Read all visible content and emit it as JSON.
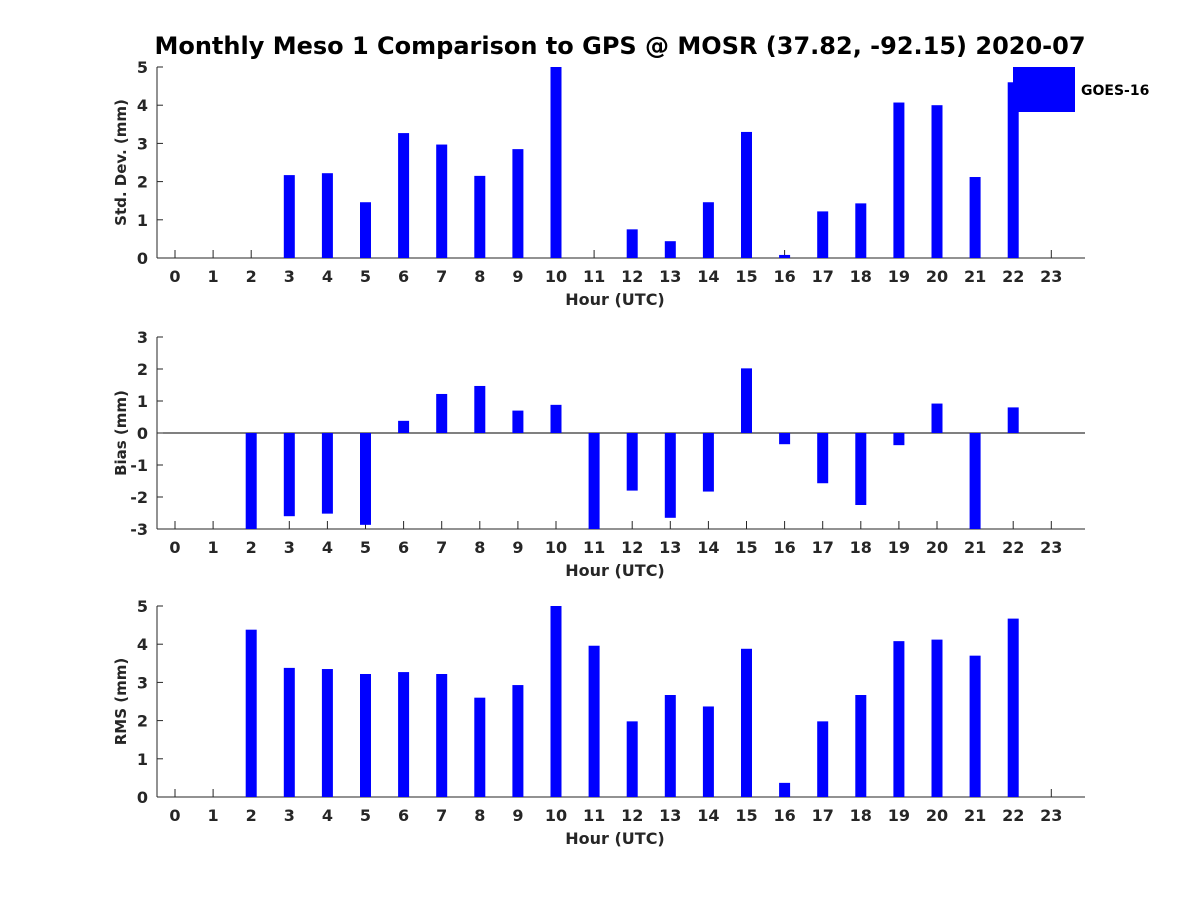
{
  "colors": {
    "bar": "#0000ff",
    "axis": "#262626",
    "background": "#ffffff"
  },
  "chart_data": {
    "title": "Monthly Meso 1 Comparison to GPS @ MOSR (37.82, -92.15) 2020-07",
    "legend": {
      "label": "GOES-16",
      "placement": "top-right"
    },
    "hours": [
      "0",
      "1",
      "2",
      "3",
      "4",
      "5",
      "6",
      "7",
      "8",
      "9",
      "10",
      "11",
      "12",
      "13",
      "14",
      "15",
      "16",
      "17",
      "18",
      "19",
      "20",
      "21",
      "22",
      "23"
    ],
    "panels": [
      {
        "type": "bar",
        "name": "std-dev",
        "ylabel": "Std. Dev. (mm)",
        "xlabel": "Hour (UTC)",
        "ylim": [
          0,
          5
        ],
        "yticks": [
          "0",
          "1",
          "2",
          "3",
          "4",
          "5"
        ],
        "values": [
          null,
          null,
          null,
          2.17,
          2.22,
          1.46,
          3.27,
          2.97,
          2.15,
          2.85,
          5.0,
          null,
          0.75,
          0.44,
          1.46,
          3.3,
          0.08,
          1.22,
          1.43,
          4.07,
          4.0,
          2.12,
          4.6,
          null
        ]
      },
      {
        "type": "bar",
        "name": "bias",
        "ylabel": "Bias (mm)",
        "xlabel": "Hour (UTC)",
        "ylim": [
          -3,
          3
        ],
        "yticks": [
          "-3",
          "-2",
          "-1",
          "0",
          "1",
          "2",
          "3"
        ],
        "values": [
          null,
          null,
          -3.0,
          -2.6,
          -2.52,
          -2.87,
          0.38,
          1.22,
          1.47,
          0.7,
          0.88,
          -3.0,
          -1.8,
          -2.65,
          -1.83,
          2.02,
          -0.35,
          -1.57,
          -2.25,
          -0.38,
          0.92,
          -3.0,
          0.8,
          null
        ]
      },
      {
        "type": "bar",
        "name": "rms",
        "ylabel": "RMS (mm)",
        "xlabel": "Hour (UTC)",
        "ylim": [
          0,
          5
        ],
        "yticks": [
          "0",
          "1",
          "2",
          "3",
          "4",
          "5"
        ],
        "values": [
          null,
          null,
          4.38,
          3.38,
          3.35,
          3.22,
          3.27,
          3.22,
          2.6,
          2.93,
          5.0,
          3.96,
          1.98,
          2.67,
          2.37,
          3.88,
          0.37,
          1.98,
          2.67,
          4.08,
          4.12,
          3.7,
          4.67,
          null
        ]
      }
    ]
  }
}
